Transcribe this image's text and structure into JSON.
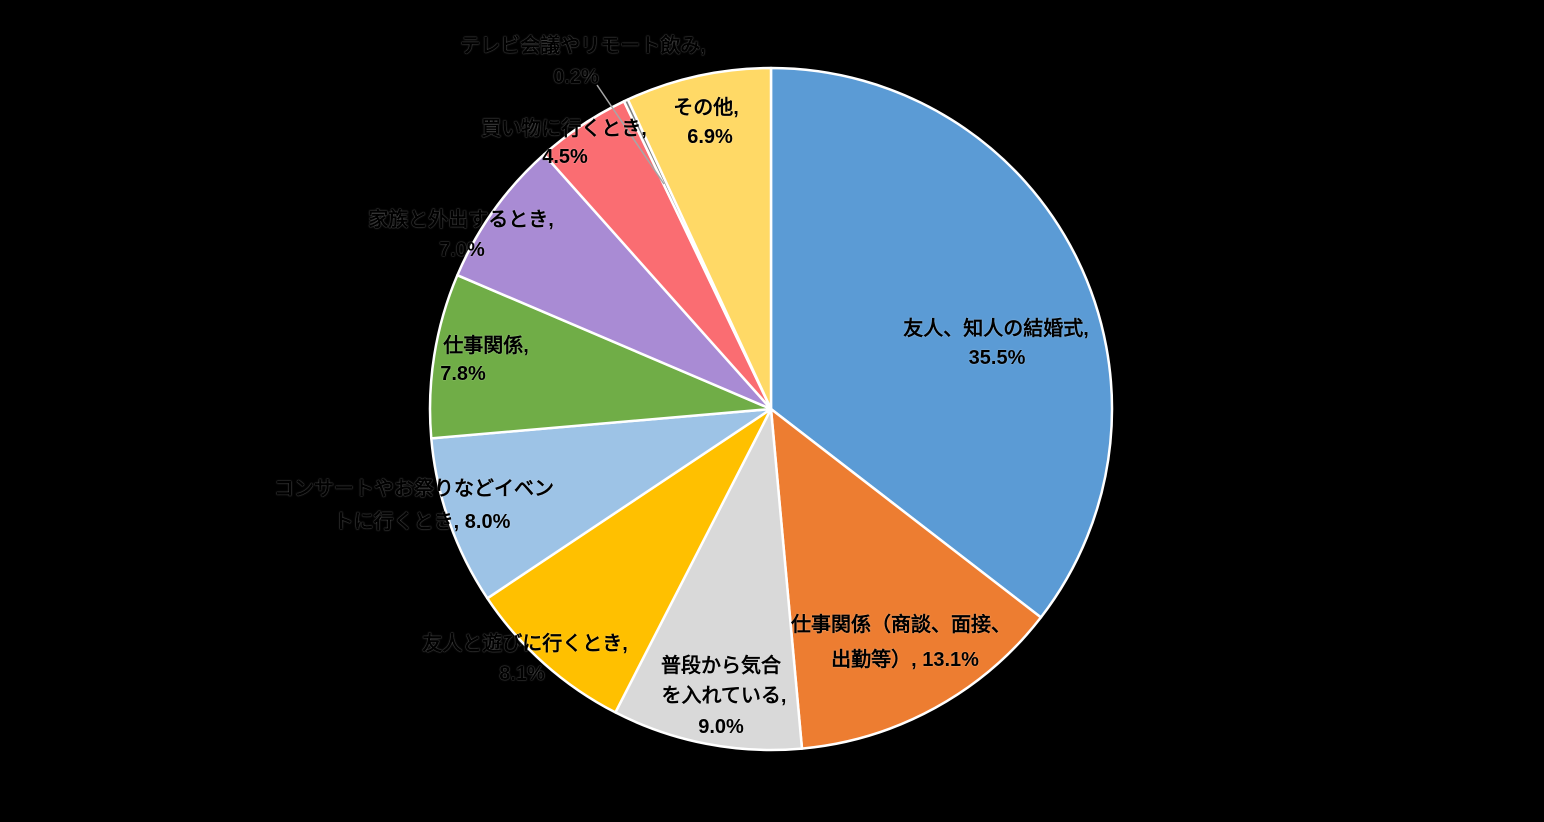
{
  "canvas": {
    "background_color": "#000000",
    "label_text_color": "#000000",
    "slice_border_color": "#FFFFFF",
    "leader_line_color": "#A6A6A6"
  },
  "chart_data": {
    "type": "pie",
    "title": "",
    "legend": "none",
    "start_angle_deg": 0,
    "direction": "clockwise",
    "values_are_percent": true,
    "total": 100.1,
    "slices": [
      {
        "id": "wedding",
        "category": "友人、知人の結婚式",
        "value": 35.5,
        "color": "#5B9BD5",
        "label_lines": [
          "友人、知人の結婚式,",
          "35.5%"
        ]
      },
      {
        "id": "work-formal",
        "category": "仕事関係（商談、面接、出勤等）",
        "value": 13.1,
        "color": "#ED7D31",
        "label_lines": [
          "仕事関係（商談、面接、",
          "出勤等）, 13.1%"
        ]
      },
      {
        "id": "everyday-spirit",
        "category": "普段から気合を入れている",
        "value": 9.0,
        "color": "#D9D9D9",
        "label_lines": [
          "普段から気合",
          "を入れている,",
          "9.0%"
        ]
      },
      {
        "id": "play-friends",
        "category": "友人と遊びに行くとき",
        "value": 8.1,
        "color": "#FFC000",
        "label_lines": [
          "友人と遊びに行くとき,",
          "8.1%"
        ]
      },
      {
        "id": "concert-events",
        "category": "コンサートやお祭りなどイベントに行くとき",
        "value": 8.0,
        "color": "#9DC3E6",
        "label_lines": [
          "コンサートやお祭りなどイベン",
          "トに行くとき, 8.0%"
        ]
      },
      {
        "id": "work",
        "category": "仕事関係",
        "value": 7.8,
        "color": "#70AD47",
        "label_lines": [
          "仕事関係,",
          "7.8%"
        ]
      },
      {
        "id": "family-outing",
        "category": "家族と外出するとき",
        "value": 7.0,
        "color": "#A98BD4",
        "label_lines": [
          "家族と外出するとき,",
          "7.0%"
        ]
      },
      {
        "id": "shopping",
        "category": "買い物に行くとき",
        "value": 4.5,
        "color": "#FA6D72",
        "label_lines": [
          "買い物に行くとき,",
          "4.5%"
        ]
      },
      {
        "id": "tv-remote",
        "category": "テレビ会議やリモート飲み",
        "value": 0.2,
        "color": "#7F7F7F",
        "label_lines": [
          "テレビ会議やリモート飲み,",
          "0.2%"
        ]
      },
      {
        "id": "other",
        "category": "その他",
        "value": 6.9,
        "color": "#FFD966",
        "label_lines": [
          "その他,",
          "6.9%"
        ]
      }
    ]
  }
}
